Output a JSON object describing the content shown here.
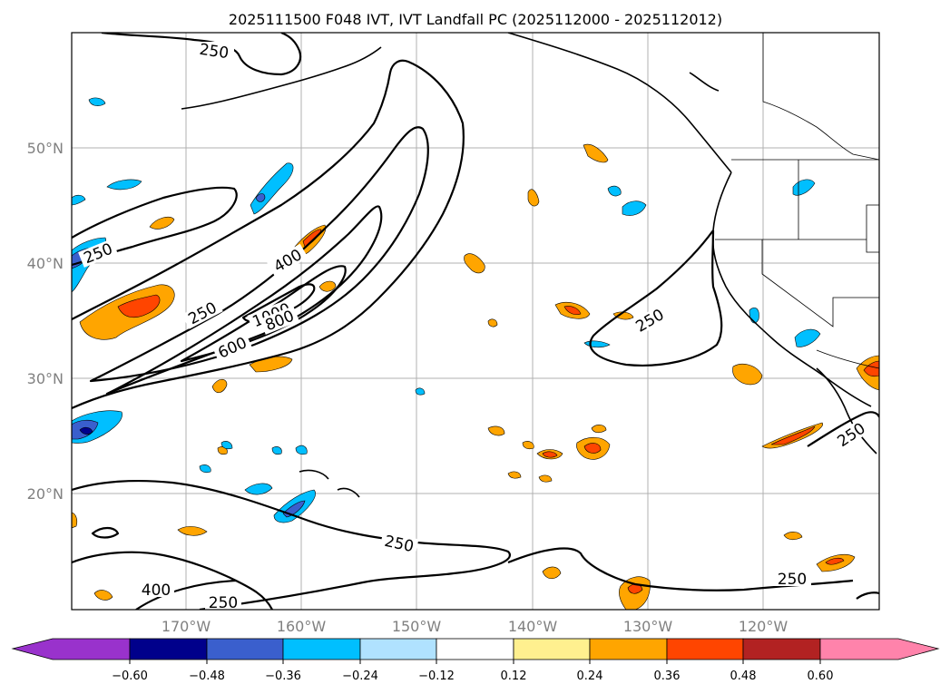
{
  "title": "2025111500 F048 IVT, IVT Landfall PC (2025112000 - 2025112012)",
  "lat_labels": [
    "50°N",
    "40°N",
    "30°N",
    "20°N"
  ],
  "lon_labels": [
    "170°W",
    "160°W",
    "150°W",
    "140°W",
    "130°W",
    "120°W"
  ],
  "contour_labels": [
    "250",
    "250",
    "400",
    "250",
    "1000",
    "800",
    "600",
    "250",
    "250",
    "250",
    "400",
    "250",
    "250"
  ],
  "colorbar": {
    "ticks": [
      "−0.60",
      "−0.48",
      "−0.36",
      "−0.24",
      "−0.12",
      "0.12",
      "0.24",
      "0.36",
      "0.48",
      "0.60"
    ],
    "colors": [
      "#9932cc",
      "#00008b",
      "#3a5fcd",
      "#00bfff",
      "#b0e2ff",
      "#ffffff",
      "#fff08f",
      "#ffa500",
      "#ff4500",
      "#b22222",
      "#ff83ab",
      "#ff83ab"
    ]
  },
  "colors": {
    "pos1": "#ffa500",
    "pos2": "#ff4500",
    "neg1": "#00bfff",
    "neg2": "#3a5fcd",
    "neg3": "#00008b"
  }
}
